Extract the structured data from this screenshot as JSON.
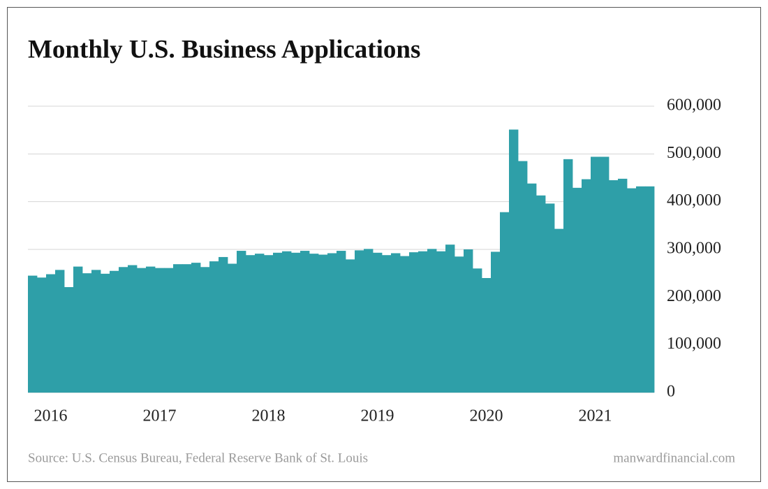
{
  "chart_data": {
    "type": "bar",
    "title": "Monthly U.S. Business Applications",
    "source": "Source: U.S. Census Bureau, Federal Reserve Bank of St. Louis",
    "website": "manwardfinancial.com",
    "color": "#2e9fa8",
    "grid": true,
    "categories": [
      null,
      null,
      "2016",
      null,
      null,
      null,
      null,
      null,
      null,
      null,
      null,
      null,
      null,
      null,
      "2017",
      null,
      null,
      null,
      null,
      null,
      null,
      null,
      null,
      null,
      null,
      null,
      "2018",
      null,
      null,
      null,
      null,
      null,
      null,
      null,
      null,
      null,
      null,
      null,
      "2019",
      null,
      null,
      null,
      null,
      null,
      null,
      null,
      null,
      null,
      null,
      null,
      "2020",
      null,
      null,
      null,
      null,
      null,
      null,
      null,
      null,
      null,
      null,
      null,
      "2021",
      null,
      null,
      null,
      null,
      null,
      null
    ],
    "values": [
      245000,
      241000,
      248000,
      257000,
      221000,
      264000,
      250000,
      257000,
      249000,
      255000,
      263000,
      267000,
      261000,
      264000,
      261000,
      261000,
      269000,
      269000,
      272000,
      263000,
      275000,
      284000,
      270000,
      297000,
      288000,
      291000,
      288000,
      293000,
      296000,
      293000,
      297000,
      291000,
      289000,
      292000,
      297000,
      279000,
      298000,
      301000,
      293000,
      288000,
      292000,
      286000,
      294000,
      296000,
      301000,
      296000,
      310000,
      285000,
      300000,
      260000,
      240000,
      295000,
      378000,
      551000,
      485000,
      438000,
      413000,
      396000,
      343000,
      489000,
      429000,
      447000,
      494000,
      494000,
      445000,
      448000,
      428000,
      432000,
      432000
    ],
    "ylim": [
      0,
      600000
    ],
    "yticks": [
      0,
      {
        "value": 100000,
        "label": "100,000"
      },
      {
        "value": 200000,
        "label": "200,000"
      },
      {
        "value": 300000,
        "label": "300,000"
      },
      {
        "value": 400000,
        "label": "400,000"
      },
      {
        "value": 500000,
        "label": "500,000"
      },
      {
        "value": 600000,
        "label": "600,000"
      }
    ]
  }
}
